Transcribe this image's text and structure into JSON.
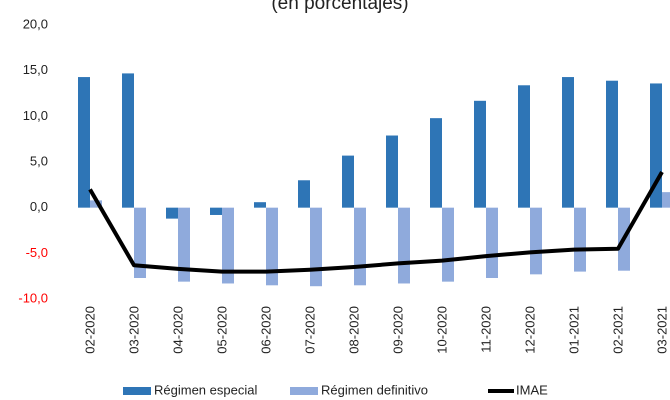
{
  "chart_data": {
    "type": "bar_line",
    "title": "(en porcentajes)",
    "categories": [
      "02-2020",
      "03-2020",
      "04-2020",
      "05-2020",
      "06-2020",
      "07-2020",
      "08-2020",
      "09-2020",
      "10-2020",
      "11-2020",
      "12-2020",
      "01-2021",
      "02-2021",
      "03-2021"
    ],
    "series": [
      {
        "name": "Régimen especial",
        "type": "bar",
        "color": "#2e75b6",
        "values": [
          14.3,
          14.7,
          -1.2,
          -0.8,
          0.6,
          3.0,
          5.7,
          7.9,
          9.8,
          11.7,
          13.4,
          14.3,
          13.9,
          13.6
        ]
      },
      {
        "name": "Régimen definitivo",
        "type": "bar",
        "color": "#8faadc",
        "values": [
          0.8,
          -7.7,
          -8.1,
          -8.3,
          -8.5,
          -8.6,
          -8.5,
          -8.3,
          -8.1,
          -7.7,
          -7.3,
          -7.0,
          -6.9,
          1.7
        ]
      },
      {
        "name": "IMAE",
        "type": "line",
        "color": "#000000",
        "values": [
          2.0,
          -6.3,
          -6.7,
          -7.0,
          -7.0,
          -6.8,
          -6.5,
          -6.1,
          -5.8,
          -5.3,
          -4.9,
          -4.6,
          -4.5,
          3.9
        ]
      }
    ],
    "ylim": [
      -10,
      20
    ],
    "yticks": [
      {
        "value": -10,
        "label": "-10,0"
      },
      {
        "value": -5,
        "label": "-5,0"
      },
      {
        "value": 0,
        "label": "0,0"
      },
      {
        "value": 5,
        "label": "5,0"
      },
      {
        "value": 10,
        "label": "10,0"
      },
      {
        "value": 15,
        "label": "15,0"
      },
      {
        "value": 20,
        "label": "20,0"
      }
    ],
    "negative_tick_color": "#ff0000",
    "legend": "bottom"
  }
}
